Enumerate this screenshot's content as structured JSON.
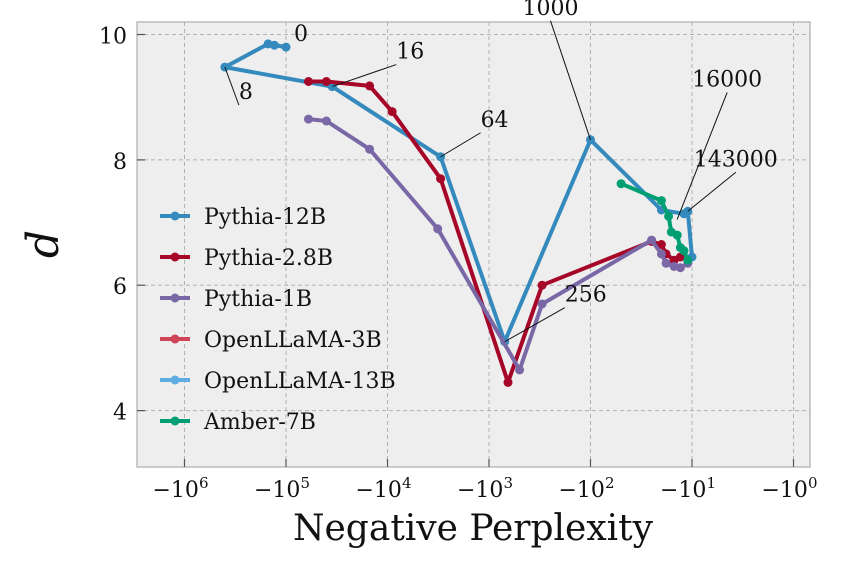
{
  "chart_data": {
    "type": "line",
    "xlabel": "Negative Perplexity",
    "ylabel": "d",
    "x_scale": "symlog-negative",
    "xlim": [
      -5000000,
      -1
    ],
    "ylim": [
      3.1,
      10.2
    ],
    "grid": true,
    "legend_position": "center-left",
    "x_ticks": [
      {
        "value": -1000000,
        "base": "−10",
        "exp": "6"
      },
      {
        "value": -100000,
        "base": "−10",
        "exp": "5"
      },
      {
        "value": -10000,
        "base": "−10",
        "exp": "4"
      },
      {
        "value": -1000,
        "base": "−10",
        "exp": "3"
      },
      {
        "value": -100,
        "base": "−10",
        "exp": "2"
      },
      {
        "value": -10,
        "base": "−10",
        "exp": "1"
      },
      {
        "value": -1,
        "base": "−10",
        "exp": "0"
      }
    ],
    "y_ticks": [
      4,
      6,
      8,
      10
    ],
    "series": [
      {
        "name": "Pythia-12B",
        "color": "#348ABD",
        "points": [
          [
            -130000,
            9.83
          ],
          [
            -100000,
            9.8
          ],
          [
            -150000,
            9.85
          ],
          [
            -400000,
            9.48
          ],
          [
            -35000,
            9.17
          ],
          [
            -3000,
            8.05
          ],
          [
            -700,
            5.1
          ],
          [
            -100,
            8.32
          ],
          [
            -20,
            7.2
          ],
          [
            -12,
            7.14
          ],
          [
            -11,
            7.18
          ],
          [
            -10,
            6.45
          ]
        ]
      },
      {
        "name": "Pythia-2.8B",
        "color": "#A60628",
        "points": [
          [
            -60000,
            9.25
          ],
          [
            -40000,
            9.25
          ],
          [
            -15000,
            9.18
          ],
          [
            -9000,
            8.77
          ],
          [
            -3000,
            7.7
          ],
          [
            -650,
            4.45
          ],
          [
            -300,
            6.0
          ],
          [
            -25,
            6.7
          ],
          [
            -20,
            6.65
          ],
          [
            -18,
            6.5
          ],
          [
            -15,
            6.4
          ],
          [
            -13,
            6.45
          ]
        ]
      },
      {
        "name": "Pythia-1B",
        "color": "#7A68A6",
        "points": [
          [
            -60000,
            8.65
          ],
          [
            -40000,
            8.62
          ],
          [
            -15000,
            8.17
          ],
          [
            -3200,
            6.9
          ],
          [
            -500,
            4.65
          ],
          [
            -300,
            5.7
          ],
          [
            -25,
            6.72
          ],
          [
            -20,
            6.5
          ],
          [
            -18,
            6.35
          ],
          [
            -15,
            6.3
          ],
          [
            -13,
            6.28
          ],
          [
            -11,
            6.35
          ]
        ]
      },
      {
        "name": "OpenLLaMA-3B",
        "color": "#CF4457",
        "points": []
      },
      {
        "name": "OpenLLaMA-13B",
        "color": "#5DADE2",
        "points": []
      },
      {
        "name": "Amber-7B",
        "color": "#009E73",
        "points": [
          [
            -50,
            7.62
          ],
          [
            -20,
            7.35
          ],
          [
            -17,
            7.1
          ],
          [
            -16,
            6.85
          ],
          [
            -14,
            6.8
          ],
          [
            -13,
            6.6
          ],
          [
            -12,
            6.55
          ],
          [
            -11,
            6.4
          ]
        ]
      }
    ],
    "annotations": [
      {
        "text": "0",
        "point": [
          -100000,
          9.8
        ]
      },
      {
        "text": "8",
        "point": [
          -400000,
          9.48
        ]
      },
      {
        "text": "16",
        "point": [
          -35000,
          9.17
        ]
      },
      {
        "text": "64",
        "point": [
          -3000,
          8.05
        ]
      },
      {
        "text": "256",
        "point": [
          -700,
          5.1
        ]
      },
      {
        "text": "1000",
        "point": [
          -100,
          8.32
        ]
      },
      {
        "text": "16000",
        "point": [
          -14,
          7.05
        ]
      },
      {
        "text": "143000",
        "point": [
          -11,
          7.18
        ]
      }
    ]
  }
}
